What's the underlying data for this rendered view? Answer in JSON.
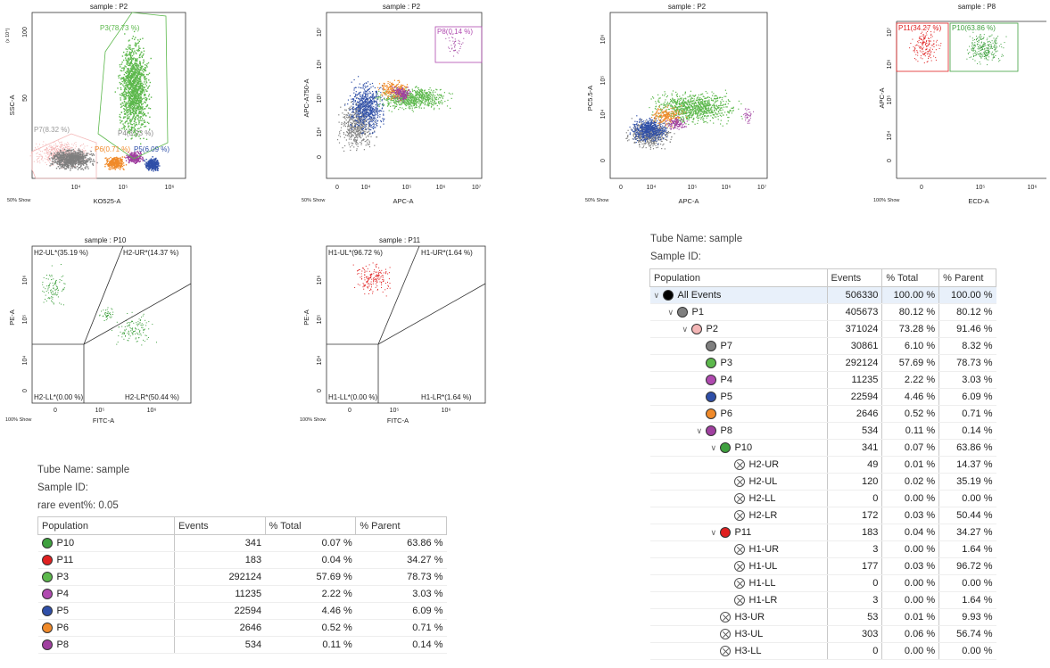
{
  "plots": [
    {
      "title": "sample : P2",
      "xlabel": "KO525-A",
      "ylabel": "SSC-A",
      "show": "50% Show",
      "ymult": "(x 10⁴)",
      "xticks": [
        "10⁴",
        "10⁵",
        "10⁶"
      ],
      "yticks": [
        "100",
        "50"
      ],
      "gates": {
        "p3": "P3(78.73 %)",
        "p7": "P7(8.32 %)",
        "p4": "P4(3.03 %)",
        "p6": "P6(0.71 %)",
        "p5": "P5(6.09 %)"
      }
    },
    {
      "title": "sample : P2",
      "xlabel": "APC-A",
      "ylabel": "APC-A750-A",
      "show": "50% Show",
      "xticks": [
        "0",
        "10⁴",
        "10⁵",
        "10⁶",
        "10⁷"
      ],
      "yticks": [
        "10⁷",
        "10⁶",
        "10⁵",
        "10⁴",
        "0"
      ],
      "gates": {
        "p8": "P8(0.14 %)"
      }
    },
    {
      "title": "sample : P2",
      "xlabel": "APC-A",
      "ylabel": "PC5.5-A",
      "show": "50% Show",
      "xticks": [
        "0",
        "10⁴",
        "10⁵",
        "10⁶",
        "10⁷"
      ],
      "yticks": [
        "10⁶",
        "10⁵",
        "10⁴",
        "0"
      ]
    },
    {
      "title": "sample : P8",
      "xlabel": "ECD-A",
      "ylabel": "APC-A",
      "show": "100% Show",
      "xticks": [
        "0",
        "10⁵",
        "10⁶"
      ],
      "yticks": [
        "10⁷",
        "10⁶",
        "10⁵",
        "10⁴",
        "0"
      ],
      "gates": {
        "p11": "P11(34.27 %)",
        "p10": "P10(63.86 %)"
      }
    },
    {
      "title": "sample : P10",
      "xlabel": "FITC-A",
      "ylabel": "PE-A",
      "show": "100% Show",
      "xticks": [
        "0",
        "10⁵",
        "10⁶"
      ],
      "yticks": [
        "10⁶",
        "10⁵",
        "10⁴",
        "0"
      ],
      "quads": {
        "ul": "H2-UL*(35.19 %)",
        "ur": "H2-UR*(14.37 %)",
        "ll": "H2-LL*(0.00 %)",
        "lr": "H2-LR*(50.44 %)"
      }
    },
    {
      "title": "sample : P11",
      "xlabel": "FITC-A",
      "ylabel": "PE-A",
      "show": "100% Show",
      "xticks": [
        "0",
        "10⁵",
        "10⁶"
      ],
      "yticks": [
        "10⁶",
        "10⁵",
        "10⁴",
        "0"
      ],
      "quads": {
        "ul": "H1-UL*(96.72 %)",
        "ur": "H1-UR*(1.64 %)",
        "ll": "H1-LL*(0.00 %)",
        "lr": "H1-LR*(1.64 %)"
      }
    }
  ],
  "colors": {
    "gray": "#7f7f7f",
    "green": "#5cb84c",
    "blue": "#2f4fa8",
    "orange": "#f08a2a",
    "purple": "#a040a0",
    "pink": "#f4b6b6",
    "red": "#e02020",
    "black": "#000000",
    "darkgreen": "#3ea03e"
  },
  "left_info": {
    "tube_label": "Tube Name:  sample",
    "sample_label": "Sample ID:",
    "rare_label": "rare event%:  0.05"
  },
  "left_table": {
    "headers": [
      "Population",
      "Events",
      "% Total",
      "% Parent"
    ],
    "rows": [
      {
        "name": "P10",
        "color": "#3ea03e",
        "events": "341",
        "total": "0.07 %",
        "parent": "63.86 %"
      },
      {
        "name": "P11",
        "color": "#e02020",
        "events": "183",
        "total": "0.04 %",
        "parent": "34.27 %"
      },
      {
        "name": "P3",
        "color": "#5cb84c",
        "events": "292124",
        "total": "57.69 %",
        "parent": "78.73 %"
      },
      {
        "name": "P4",
        "color": "#b04ab0",
        "events": "11235",
        "total": "2.22 %",
        "parent": "3.03 %"
      },
      {
        "name": "P5",
        "color": "#2f4fa8",
        "events": "22594",
        "total": "4.46 %",
        "parent": "6.09 %"
      },
      {
        "name": "P6",
        "color": "#f08a2a",
        "events": "2646",
        "total": "0.52 %",
        "parent": "0.71 %"
      },
      {
        "name": "P8",
        "color": "#a040a0",
        "events": "534",
        "total": "0.11 %",
        "parent": "0.14 %"
      }
    ]
  },
  "right_info": {
    "tube_label": "Tube Name:  sample",
    "sample_label": "Sample ID:"
  },
  "right_table": {
    "headers": [
      "Population",
      "Events",
      "% Total",
      "% Parent"
    ],
    "rows": [
      {
        "name": "All Events",
        "color": "#000000",
        "indent": 0,
        "chev": true,
        "events": "506330",
        "total": "100.00 %",
        "parent": "100.00 %"
      },
      {
        "name": "P1",
        "color": "#7f7f7f",
        "indent": 1,
        "chev": true,
        "events": "405673",
        "total": "80.12 %",
        "parent": "80.12 %"
      },
      {
        "name": "P2",
        "color": "#f4b6b6",
        "indent": 2,
        "chev": true,
        "events": "371024",
        "total": "73.28 %",
        "parent": "91.46 %"
      },
      {
        "name": "P7",
        "color": "#7f7f7f",
        "indent": 3,
        "chev": false,
        "events": "30861",
        "total": "6.10 %",
        "parent": "8.32 %"
      },
      {
        "name": "P3",
        "color": "#5cb84c",
        "indent": 3,
        "chev": false,
        "events": "292124",
        "total": "57.69 %",
        "parent": "78.73 %"
      },
      {
        "name": "P4",
        "color": "#b04ab0",
        "indent": 3,
        "chev": false,
        "events": "11235",
        "total": "2.22 %",
        "parent": "3.03 %"
      },
      {
        "name": "P5",
        "color": "#2f4fa8",
        "indent": 3,
        "chev": false,
        "events": "22594",
        "total": "4.46 %",
        "parent": "6.09 %"
      },
      {
        "name": "P6",
        "color": "#f08a2a",
        "indent": 3,
        "chev": false,
        "events": "2646",
        "total": "0.52 %",
        "parent": "0.71 %"
      },
      {
        "name": "P8",
        "color": "#a040a0",
        "indent": 3,
        "chev": true,
        "events": "534",
        "total": "0.11 %",
        "parent": "0.14 %"
      },
      {
        "name": "P10",
        "color": "#3ea03e",
        "indent": 4,
        "chev": true,
        "events": "341",
        "total": "0.07 %",
        "parent": "63.86 %"
      },
      {
        "name": "H2-UR",
        "color": "x",
        "indent": 5,
        "chev": false,
        "events": "49",
        "total": "0.01 %",
        "parent": "14.37 %"
      },
      {
        "name": "H2-UL",
        "color": "x",
        "indent": 5,
        "chev": false,
        "events": "120",
        "total": "0.02 %",
        "parent": "35.19 %"
      },
      {
        "name": "H2-LL",
        "color": "x",
        "indent": 5,
        "chev": false,
        "events": "0",
        "total": "0.00 %",
        "parent": "0.00 %"
      },
      {
        "name": "H2-LR",
        "color": "x",
        "indent": 5,
        "chev": false,
        "events": "172",
        "total": "0.03 %",
        "parent": "50.44 %"
      },
      {
        "name": "P11",
        "color": "#e02020",
        "indent": 4,
        "chev": true,
        "events": "183",
        "total": "0.04 %",
        "parent": "34.27 %"
      },
      {
        "name": "H1-UR",
        "color": "x",
        "indent": 5,
        "chev": false,
        "events": "3",
        "total": "0.00 %",
        "parent": "1.64 %"
      },
      {
        "name": "H1-UL",
        "color": "x",
        "indent": 5,
        "chev": false,
        "events": "177",
        "total": "0.03 %",
        "parent": "96.72 %"
      },
      {
        "name": "H1-LL",
        "color": "x",
        "indent": 5,
        "chev": false,
        "events": "0",
        "total": "0.00 %",
        "parent": "0.00 %"
      },
      {
        "name": "H1-LR",
        "color": "x",
        "indent": 5,
        "chev": false,
        "events": "3",
        "total": "0.00 %",
        "parent": "1.64 %"
      },
      {
        "name": "H3-UR",
        "color": "x",
        "indent": 4,
        "chev": false,
        "events": "53",
        "total": "0.01 %",
        "parent": "9.93 %"
      },
      {
        "name": "H3-UL",
        "color": "x",
        "indent": 4,
        "chev": false,
        "events": "303",
        "total": "0.06 %",
        "parent": "56.74 %"
      },
      {
        "name": "H3-LL",
        "color": "x",
        "indent": 4,
        "chev": false,
        "events": "0",
        "total": "0.00 %",
        "parent": "0.00 %"
      }
    ]
  }
}
